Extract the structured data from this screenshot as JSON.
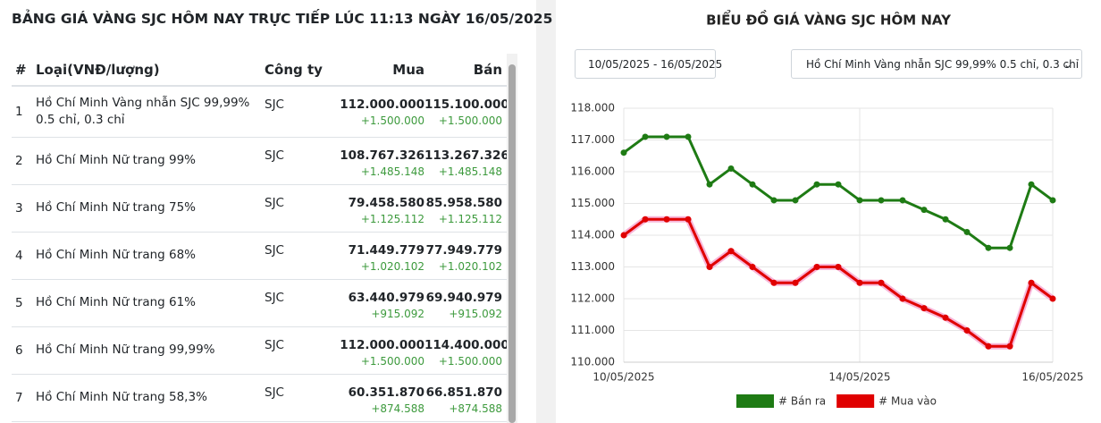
{
  "table_panel": {
    "title": "BẢNG GIÁ VÀNG SJC HÔM NAY TRỰC TIẾP LÚC 11:13 NGÀY 16/05/2025",
    "headers": [
      "#",
      "Loại(VNĐ/lượng)",
      "Công ty",
      "Mua",
      "Bán"
    ],
    "rows": [
      [
        "1",
        "Hồ Chí Minh Vàng nhẫn SJC 99,99% 0.5 chỉ, 0.3 chỉ",
        "SJC",
        "112.000.000",
        "+1.500.000",
        "115.100.000",
        "+1.500.000"
      ],
      [
        "2",
        "Hồ Chí Minh Nữ trang 99%",
        "SJC",
        "108.767.326",
        "+1.485.148",
        "113.267.326",
        "+1.485.148"
      ],
      [
        "3",
        "Hồ Chí Minh Nữ trang 75%",
        "SJC",
        "79.458.580",
        "+1.125.112",
        "85.958.580",
        "+1.125.112"
      ],
      [
        "4",
        "Hồ Chí Minh Nữ trang 68%",
        "SJC",
        "71.449.779",
        "+1.020.102",
        "77.949.779",
        "+1.020.102"
      ],
      [
        "5",
        "Hồ Chí Minh Nữ trang 61%",
        "SJC",
        "63.440.979",
        "+915.092",
        "69.940.979",
        "+915.092"
      ],
      [
        "6",
        "Hồ Chí Minh Nữ trang 99,99%",
        "SJC",
        "112.000.000",
        "+1.500.000",
        "114.400.000",
        "+1.500.000"
      ],
      [
        "7",
        "Hồ Chí Minh Nữ trang 58,3%",
        "SJC",
        "60.351.870",
        "+874.588",
        "66.851.870",
        "+874.588"
      ]
    ]
  },
  "controls": {
    "date_range": "10/05/2025 - 16/05/2025",
    "product": "Hồ Chí Minh Vàng nhẫn SJC 99,99% 0.5 chỉ, 0.3 chỉ"
  },
  "chart_data": {
    "type": "line",
    "title": "BIỂU ĐỒ GIÁ VÀNG SJC HÔM NAY",
    "categories": [
      "10/05/2025",
      null,
      null,
      null,
      null,
      null,
      null,
      null,
      null,
      null,
      null,
      "14/05/2025",
      null,
      null,
      null,
      null,
      null,
      null,
      null,
      null,
      "16/05/2025"
    ],
    "series": [
      {
        "name": "# Bán ra",
        "color": "#1e7b14",
        "values": [
          116600,
          117100,
          117100,
          117100,
          115600,
          116100,
          115600,
          115100,
          115100,
          115600,
          115600,
          115100,
          115100,
          115100,
          114800,
          114500,
          114100,
          113600,
          113600,
          115600,
          115100
        ]
      },
      {
        "name": "# Mua vào",
        "color": "#e00000",
        "values": [
          114000,
          114500,
          114500,
          114500,
          113000,
          113500,
          113000,
          112500,
          112500,
          113000,
          113000,
          112500,
          112500,
          112000,
          111700,
          111400,
          111000,
          110500,
          110500,
          112500,
          112000
        ]
      }
    ],
    "ylim": [
      110000,
      118000
    ],
    "yticks": [
      {
        "value": 110000,
        "label": "110.000"
      },
      {
        "value": 111000,
        "label": "111.000"
      },
      {
        "value": 112000,
        "label": "112.000"
      },
      {
        "value": 113000,
        "label": "113.000"
      },
      {
        "value": 114000,
        "label": "114.000"
      },
      {
        "value": 115000,
        "label": "115.000"
      },
      {
        "value": 116000,
        "label": "116.000"
      },
      {
        "value": 117000,
        "label": "117.000"
      },
      {
        "value": 118000,
        "label": "118.000"
      }
    ],
    "grid": true,
    "legend": "bottom"
  }
}
